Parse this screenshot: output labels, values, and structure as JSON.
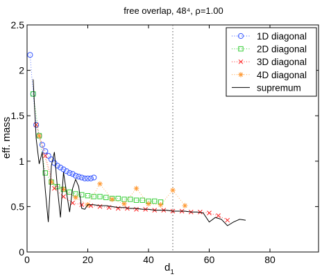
{
  "chart_data": {
    "type": "scatter",
    "title": "free overlap, 48⁴, ρ=1.00",
    "xlabel": "d",
    "xlabel_subscript": "1",
    "ylabel": "eff. mass",
    "xlim": [
      0,
      96
    ],
    "ylim": [
      0,
      2.5
    ],
    "xticks": [
      0,
      20,
      40,
      60,
      80
    ],
    "yticks": [
      0,
      0.5,
      1,
      1.5,
      2,
      2.5
    ],
    "xtick_labels": [
      "0",
      "20",
      "40",
      "60",
      "80"
    ],
    "ytick_labels": [
      "0",
      "0.5",
      "1",
      "1.5",
      "2",
      "2.5"
    ],
    "grid": false,
    "legend_position": "top-right",
    "vertical_reference_line": {
      "x": 48,
      "style": "dotted"
    },
    "series": [
      {
        "name": "1D diagonal",
        "marker": "circle",
        "color": "#3355ff",
        "line": "dotted",
        "x": [
          1,
          2,
          3,
          4,
          5,
          6,
          7,
          8,
          9,
          10,
          11,
          12,
          13,
          14,
          15,
          16,
          17,
          18,
          19,
          20,
          21,
          22
        ],
        "y": [
          2.17,
          1.74,
          1.4,
          1.28,
          1.18,
          1.11,
          1.06,
          1.02,
          0.98,
          0.95,
          0.93,
          0.91,
          0.89,
          0.87,
          0.86,
          0.84,
          0.83,
          0.82,
          0.81,
          0.81,
          0.81,
          0.82
        ]
      },
      {
        "name": "2D diagonal",
        "marker": "square",
        "color": "#33cc33",
        "line": "dotted",
        "x": [
          2,
          4,
          6,
          8,
          10,
          12,
          14,
          16,
          18,
          20,
          22,
          24,
          26,
          28,
          30,
          32,
          34,
          36,
          38,
          40,
          42,
          44
        ],
        "y": [
          1.74,
          1.28,
          0.87,
          0.77,
          0.72,
          0.69,
          0.66,
          0.64,
          0.63,
          0.62,
          0.61,
          0.61,
          0.6,
          0.59,
          0.59,
          0.58,
          0.58,
          0.57,
          0.57,
          0.56,
          0.56,
          0.55
        ]
      },
      {
        "name": "3D diagonal",
        "marker": "x",
        "color": "#ff2222",
        "line": "dotted",
        "x": [
          3,
          6,
          9,
          12,
          15,
          18,
          21,
          24,
          27,
          30,
          33,
          36,
          39,
          42,
          45,
          48,
          51,
          54,
          57,
          60,
          63,
          66
        ],
        "y": [
          1.4,
          1.06,
          0.7,
          0.61,
          0.54,
          0.52,
          0.51,
          0.5,
          0.49,
          0.48,
          0.48,
          0.47,
          0.47,
          0.46,
          0.46,
          0.45,
          0.45,
          0.44,
          0.44,
          0.43,
          0.4,
          0.35
        ]
      },
      {
        "name": "4D diagonal",
        "marker": "star",
        "color": "#ff9933",
        "line": "dotted",
        "x": [
          4,
          8,
          12,
          16,
          20,
          24,
          28,
          32,
          36,
          40,
          44,
          48,
          52
        ],
        "y": [
          1.28,
          0.77,
          0.69,
          0.6,
          0.52,
          0.75,
          0.58,
          0.53,
          0.7,
          0.53,
          0.52,
          0.68,
          0.51
        ]
      },
      {
        "name": "supremum",
        "marker": "none",
        "color": "#000000",
        "line": "solid",
        "x": [
          2,
          3,
          4,
          5,
          6,
          7,
          8,
          9,
          10,
          11,
          12,
          13,
          14,
          15,
          16,
          17,
          18,
          19,
          20,
          22,
          24,
          26,
          28,
          30,
          32,
          34,
          36,
          38,
          40,
          42,
          44,
          46,
          48,
          50,
          52,
          54,
          56,
          58,
          60,
          62,
          64,
          66,
          68,
          70,
          72
        ],
        "y": [
          1.9,
          1.25,
          0.97,
          1.1,
          0.68,
          0.33,
          0.95,
          1.1,
          0.7,
          0.38,
          0.88,
          0.65,
          0.44,
          0.7,
          0.8,
          0.72,
          0.48,
          0.47,
          0.52,
          0.52,
          0.51,
          0.51,
          0.5,
          0.49,
          0.49,
          0.48,
          0.48,
          0.47,
          0.47,
          0.46,
          0.46,
          0.46,
          0.45,
          0.45,
          0.45,
          0.44,
          0.44,
          0.43,
          0.33,
          0.38,
          0.36,
          0.29,
          0.33,
          0.36,
          0.35
        ]
      }
    ]
  }
}
